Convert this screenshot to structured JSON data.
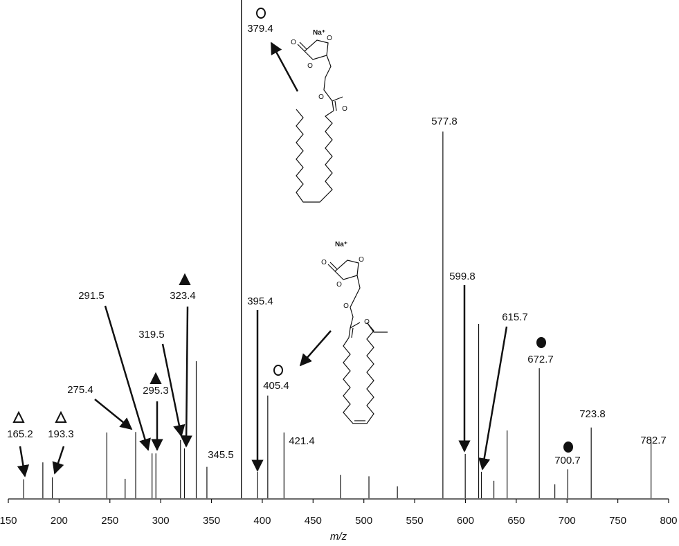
{
  "chart_data": {
    "type": "spectrum",
    "x_axis_label": "m/z",
    "xlim": [
      150,
      800
    ],
    "xticks": [
      150,
      200,
      250,
      300,
      350,
      400,
      450,
      500,
      550,
      600,
      650,
      700,
      750,
      800
    ],
    "ylim": [
      0,
      100
    ],
    "color": "#111111",
    "x": [
      165.2,
      184,
      193.3,
      247,
      265,
      275.4,
      291.5,
      295.3,
      319.5,
      323.4,
      335,
      345.5,
      379.4,
      395.4,
      405.4,
      421.4,
      477,
      505,
      533,
      577.8,
      599.8,
      613,
      615.7,
      628,
      641,
      672.7,
      688,
      700.7,
      723.8,
      782.7
    ],
    "values": [
      3.8,
      7.2,
      4.2,
      13.2,
      3.9,
      13.3,
      9,
      9,
      11.7,
      10,
      27.5,
      6.3,
      100,
      5.3,
      20.6,
      13.2,
      4.7,
      4.4,
      2.4,
      73.6,
      8.9,
      35,
      5.3,
      3.5,
      13.6,
      26.1,
      2.8,
      5.8,
      14.2,
      11.8
    ],
    "x_labels": [
      "165.2",
      null,
      "193.3",
      null,
      null,
      "275.4",
      "291.5",
      "295.3",
      "319.5",
      "323.4",
      null,
      "345.5",
      "379.4",
      "395.4",
      "405.4",
      "421.4",
      null,
      null,
      null,
      "577.8",
      "599.8",
      null,
      "615.7",
      null,
      null,
      "672.7",
      null,
      "700.7",
      "723.8",
      "782.7"
    ],
    "markers": [
      "open-triangle",
      null,
      "open-triangle",
      null,
      null,
      null,
      null,
      "filled-triangle",
      null,
      "filled-triangle",
      null,
      null,
      "open-circle",
      null,
      "open-circle",
      null,
      null,
      null,
      null,
      null,
      null,
      null,
      null,
      null,
      null,
      "filled-circle",
      null,
      "filled-circle",
      null,
      null
    ],
    "structures": [
      {
        "atoms": [
          "Na⁺",
          "O",
          "O",
          "O",
          "O",
          "O"
        ]
      },
      {
        "atoms": [
          "Na⁺",
          "O",
          "O",
          "O",
          "O",
          "O"
        ]
      }
    ]
  }
}
